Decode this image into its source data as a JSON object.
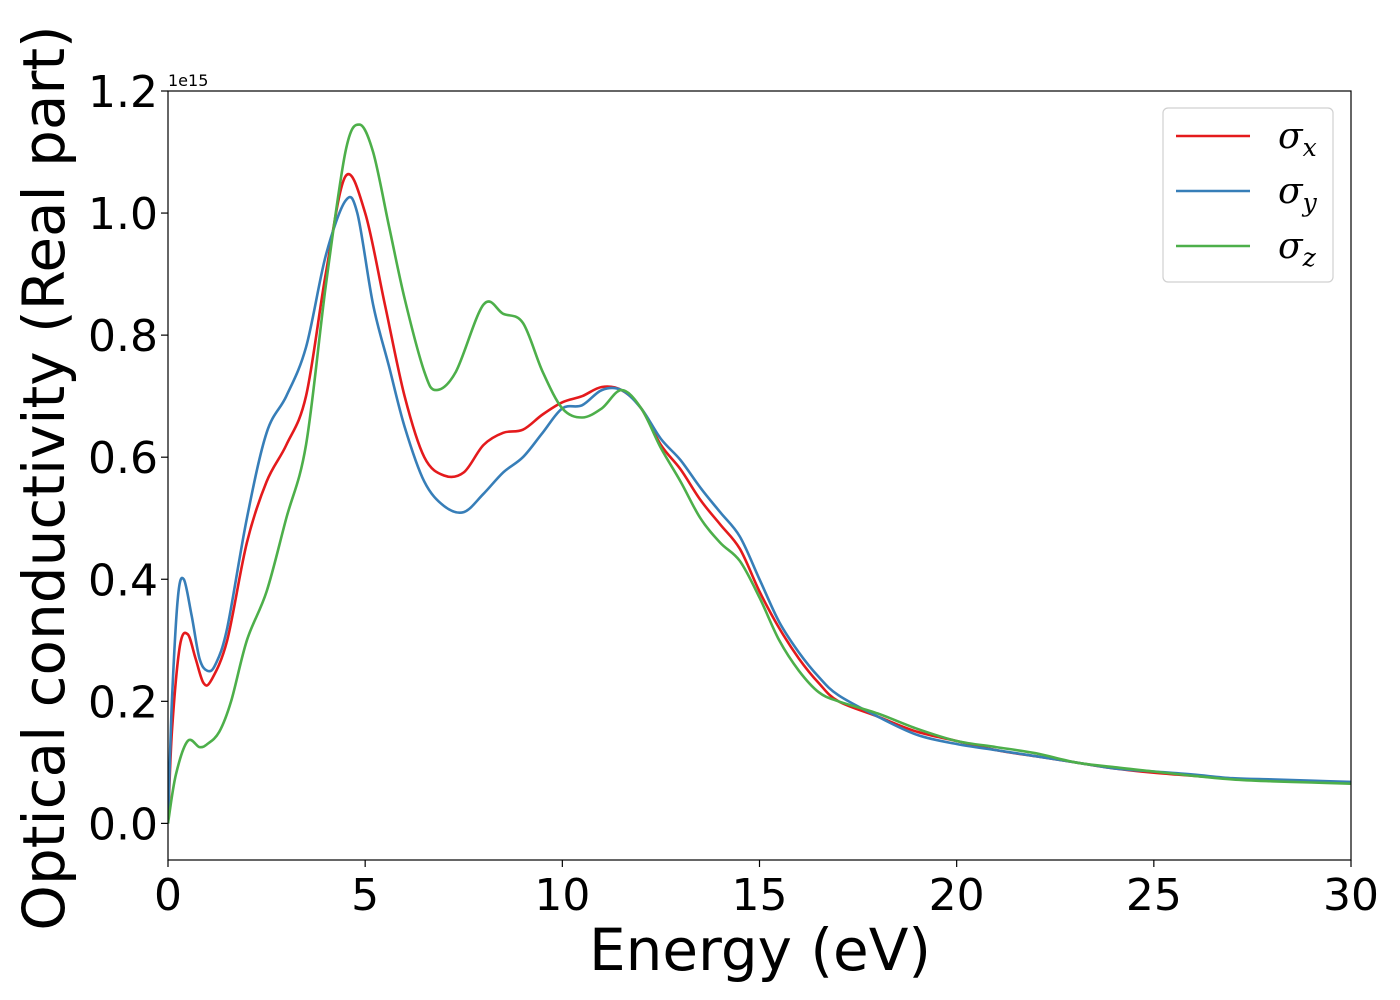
{
  "chart_data": {
    "type": "line",
    "title": "",
    "xlabel": "Energy (eV)",
    "ylabel": "Optical conductivity (Real part)",
    "y_offset_label": "1e15",
    "xlim": [
      0,
      30
    ],
    "ylim": [
      -0.06,
      1.2
    ],
    "xticks": [
      0,
      5,
      10,
      15,
      20,
      25,
      30
    ],
    "xtick_labels": [
      "0",
      "5",
      "10",
      "15",
      "20",
      "25",
      "30"
    ],
    "yticks": [
      0.0,
      0.2,
      0.4,
      0.6,
      0.8,
      1.0,
      1.2
    ],
    "ytick_labels": [
      "0.0",
      "0.2",
      "0.4",
      "0.6",
      "0.8",
      "1.0",
      "1.2"
    ],
    "grid": false,
    "legend_position": "top-right",
    "series": [
      {
        "name": "σx",
        "symbol": "σ",
        "subscript": "x",
        "color": "#e41a1c",
        "points": [
          [
            0,
            0
          ],
          [
            0.1,
            0.15
          ],
          [
            0.3,
            0.29
          ],
          [
            0.5,
            0.31
          ],
          [
            0.7,
            0.27
          ],
          [
            0.9,
            0.23
          ],
          [
            1.1,
            0.235
          ],
          [
            1.5,
            0.3
          ],
          [
            2,
            0.46
          ],
          [
            2.5,
            0.56
          ],
          [
            3,
            0.62
          ],
          [
            3.5,
            0.7
          ],
          [
            4,
            0.9
          ],
          [
            4.5,
            1.06
          ],
          [
            5,
            1.0
          ],
          [
            5.5,
            0.85
          ],
          [
            6,
            0.7
          ],
          [
            6.5,
            0.6
          ],
          [
            7,
            0.57
          ],
          [
            7.5,
            0.575
          ],
          [
            8,
            0.62
          ],
          [
            8.5,
            0.64
          ],
          [
            9,
            0.645
          ],
          [
            9.5,
            0.67
          ],
          [
            10,
            0.69
          ],
          [
            10.5,
            0.7
          ],
          [
            11,
            0.715
          ],
          [
            11.5,
            0.71
          ],
          [
            12,
            0.68
          ],
          [
            12.5,
            0.62
          ],
          [
            13,
            0.58
          ],
          [
            13.5,
            0.53
          ],
          [
            14,
            0.49
          ],
          [
            14.5,
            0.45
          ],
          [
            15,
            0.38
          ],
          [
            15.5,
            0.32
          ],
          [
            16,
            0.27
          ],
          [
            16.5,
            0.23
          ],
          [
            17,
            0.2
          ],
          [
            18,
            0.175
          ],
          [
            19,
            0.15
          ],
          [
            20,
            0.135
          ],
          [
            21,
            0.12
          ],
          [
            22,
            0.11
          ],
          [
            23,
            0.1
          ],
          [
            24,
            0.09
          ],
          [
            25,
            0.083
          ],
          [
            26,
            0.078
          ],
          [
            27,
            0.073
          ],
          [
            28,
            0.07
          ],
          [
            29,
            0.068
          ],
          [
            30,
            0.067
          ]
        ]
      },
      {
        "name": "σy",
        "symbol": "σ",
        "subscript": "y",
        "color": "#377eb8",
        "points": [
          [
            0,
            0
          ],
          [
            0.1,
            0.2
          ],
          [
            0.25,
            0.37
          ],
          [
            0.4,
            0.4
          ],
          [
            0.6,
            0.34
          ],
          [
            0.8,
            0.27
          ],
          [
            1,
            0.25
          ],
          [
            1.2,
            0.26
          ],
          [
            1.5,
            0.32
          ],
          [
            2,
            0.5
          ],
          [
            2.5,
            0.64
          ],
          [
            3,
            0.7
          ],
          [
            3.5,
            0.78
          ],
          [
            4,
            0.93
          ],
          [
            4.5,
            1.02
          ],
          [
            4.8,
            1.0
          ],
          [
            5.2,
            0.85
          ],
          [
            5.6,
            0.75
          ],
          [
            6,
            0.65
          ],
          [
            6.5,
            0.56
          ],
          [
            7,
            0.52
          ],
          [
            7.5,
            0.51
          ],
          [
            8,
            0.54
          ],
          [
            8.5,
            0.575
          ],
          [
            9,
            0.6
          ],
          [
            9.5,
            0.64
          ],
          [
            10,
            0.68
          ],
          [
            10.5,
            0.685
          ],
          [
            11,
            0.71
          ],
          [
            11.5,
            0.71
          ],
          [
            12,
            0.68
          ],
          [
            12.5,
            0.63
          ],
          [
            13,
            0.595
          ],
          [
            13.5,
            0.55
          ],
          [
            14,
            0.51
          ],
          [
            14.5,
            0.47
          ],
          [
            15,
            0.4
          ],
          [
            15.5,
            0.33
          ],
          [
            16,
            0.28
          ],
          [
            16.5,
            0.24
          ],
          [
            17,
            0.21
          ],
          [
            18,
            0.175
          ],
          [
            19,
            0.145
          ],
          [
            20,
            0.13
          ],
          [
            21,
            0.12
          ],
          [
            22,
            0.11
          ],
          [
            23,
            0.1
          ],
          [
            24,
            0.09
          ],
          [
            25,
            0.085
          ],
          [
            26,
            0.08
          ],
          [
            27,
            0.074
          ],
          [
            28,
            0.072
          ],
          [
            29,
            0.07
          ],
          [
            30,
            0.068
          ]
        ]
      },
      {
        "name": "σz",
        "symbol": "σ",
        "subscript": "z",
        "color": "#4daf4a",
        "points": [
          [
            0,
            0
          ],
          [
            0.2,
            0.08
          ],
          [
            0.5,
            0.135
          ],
          [
            0.8,
            0.125
          ],
          [
            1,
            0.13
          ],
          [
            1.3,
            0.15
          ],
          [
            1.6,
            0.2
          ],
          [
            2,
            0.3
          ],
          [
            2.5,
            0.38
          ],
          [
            3,
            0.5
          ],
          [
            3.5,
            0.62
          ],
          [
            4,
            0.88
          ],
          [
            4.5,
            1.1
          ],
          [
            4.85,
            1.145
          ],
          [
            5.2,
            1.1
          ],
          [
            5.6,
            0.98
          ],
          [
            6,
            0.86
          ],
          [
            6.5,
            0.74
          ],
          [
            6.8,
            0.71
          ],
          [
            7.3,
            0.74
          ],
          [
            8,
            0.85
          ],
          [
            8.5,
            0.835
          ],
          [
            9,
            0.82
          ],
          [
            9.5,
            0.74
          ],
          [
            10,
            0.68
          ],
          [
            10.5,
            0.665
          ],
          [
            11,
            0.68
          ],
          [
            11.5,
            0.71
          ],
          [
            12,
            0.68
          ],
          [
            12.5,
            0.615
          ],
          [
            13,
            0.56
          ],
          [
            13.5,
            0.5
          ],
          [
            14,
            0.46
          ],
          [
            14.5,
            0.43
          ],
          [
            15,
            0.37
          ],
          [
            15.5,
            0.3
          ],
          [
            16,
            0.25
          ],
          [
            16.5,
            0.215
          ],
          [
            17,
            0.2
          ],
          [
            18,
            0.18
          ],
          [
            19,
            0.155
          ],
          [
            20,
            0.135
          ],
          [
            21,
            0.125
          ],
          [
            22,
            0.115
          ],
          [
            23,
            0.1
          ],
          [
            24,
            0.092
          ],
          [
            25,
            0.085
          ],
          [
            26,
            0.078
          ],
          [
            27,
            0.072
          ],
          [
            28,
            0.069
          ],
          [
            29,
            0.067
          ],
          [
            30,
            0.065
          ]
        ]
      }
    ]
  }
}
